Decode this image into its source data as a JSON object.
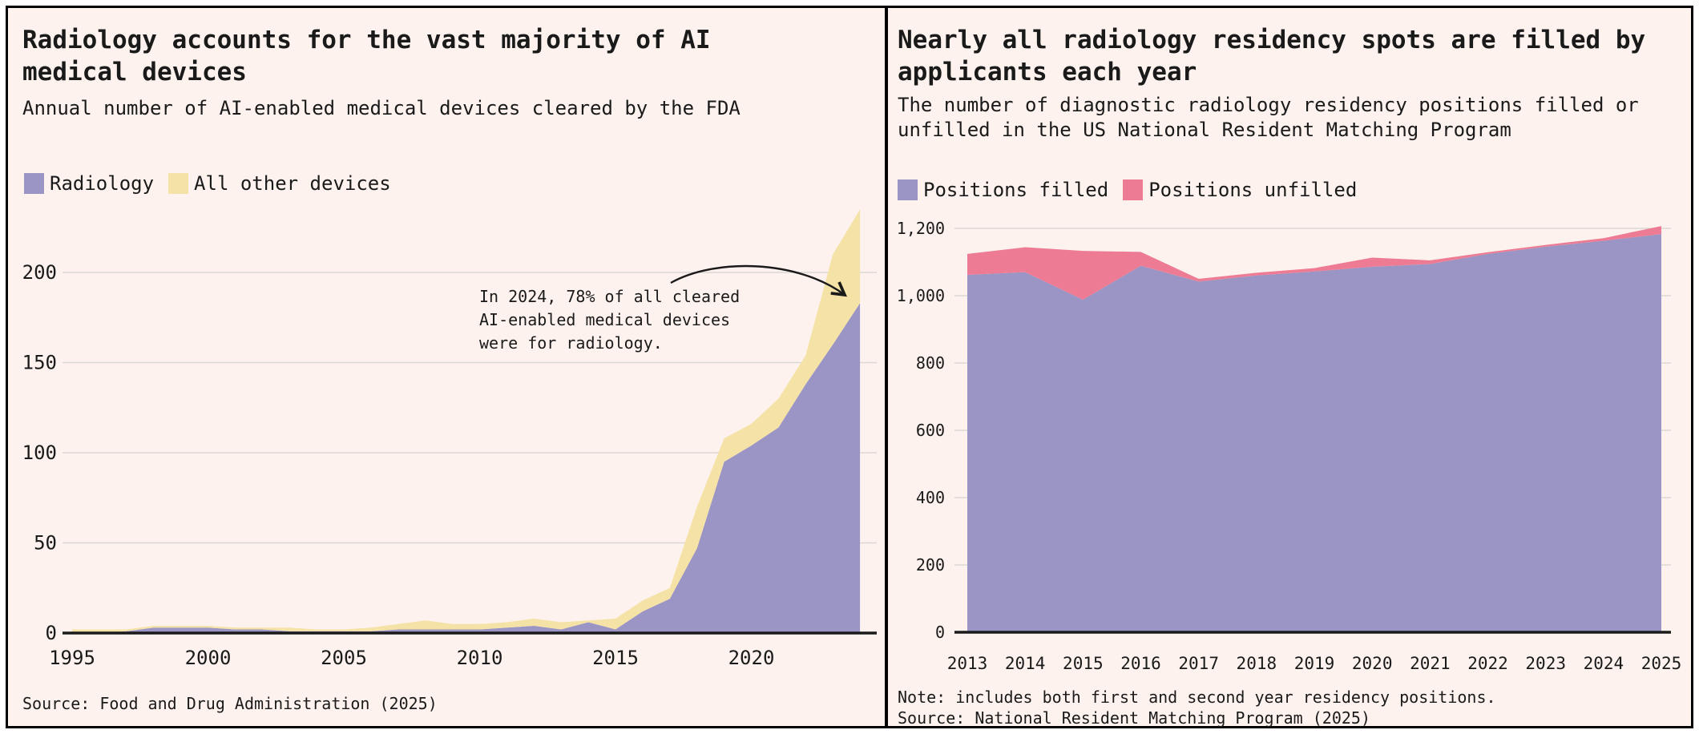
{
  "page": {
    "background": "#fdf2ee",
    "border_color": "#000000",
    "grid_color": "#dcd7d4",
    "axis_color": "#1a1a1a",
    "accent_purple": "#9a95c4",
    "accent_yellow": "#f5e2a6",
    "accent_pink": "#ee7b94"
  },
  "chart_data": [
    {
      "id": "fda-ai-devices",
      "type": "area",
      "stacked": true,
      "grid": true,
      "legend_position": "top-left",
      "title": "Radiology accounts for the vast majority of AI\nmedical devices",
      "subtitle": "Annual number of AI-enabled medical devices cleared by the FDA",
      "x": [
        1995,
        1996,
        1997,
        1998,
        1999,
        2000,
        2001,
        2002,
        2003,
        2004,
        2005,
        2006,
        2007,
        2008,
        2009,
        2010,
        2011,
        2012,
        2013,
        2014,
        2015,
        2016,
        2017,
        2018,
        2019,
        2020,
        2021,
        2022,
        2023,
        2024
      ],
      "series": [
        {
          "name": "Radiology",
          "color": "#9a95c4",
          "values": [
            0,
            0,
            1,
            3,
            3,
            3,
            2,
            2,
            1,
            1,
            1,
            1,
            2,
            2,
            2,
            2,
            3,
            4,
            2,
            6,
            2,
            12,
            19,
            47,
            95,
            104,
            114,
            138,
            160,
            183
          ]
        },
        {
          "name": "All other devices",
          "color": "#f5e2a6",
          "values": [
            2,
            2,
            1,
            1,
            1,
            1,
            1,
            1,
            2,
            1,
            1,
            2,
            3,
            5,
            3,
            3,
            3,
            4,
            4,
            1,
            6,
            6,
            6,
            23,
            13,
            12,
            16,
            16,
            50,
            52
          ]
        }
      ],
      "xticks": {
        "values": [
          1995,
          2000,
          2005,
          2010,
          2015,
          2020
        ],
        "labels": [
          "1995",
          "2000",
          "2005",
          "2010",
          "2015",
          "2020"
        ]
      },
      "yticks": {
        "values": [
          0,
          50,
          100,
          150,
          200
        ],
        "labels": [
          "0",
          "50",
          "100",
          "150",
          "200"
        ]
      },
      "ylim": [
        0,
        240
      ],
      "annotation": "In 2024, 78% of all cleared\nAI-enabled medical devices\nwere for radiology.",
      "source": "Source: Food and Drug Administration (2025)"
    },
    {
      "id": "nrmp-radiology-residency",
      "type": "area",
      "stacked": true,
      "grid": true,
      "legend_position": "top-left",
      "title": "Nearly all radiology residency spots are filled by\napplicants each year",
      "subtitle": "The number of diagnostic radiology residency positions filled or\nunfilled in the US National Resident Matching Program",
      "x": [
        2013,
        2014,
        2015,
        2016,
        2017,
        2018,
        2019,
        2020,
        2021,
        2022,
        2023,
        2024,
        2025
      ],
      "series": [
        {
          "name": "Positions filled",
          "color": "#9a95c4",
          "values": [
            1062,
            1070,
            988,
            1089,
            1042,
            1060,
            1072,
            1086,
            1094,
            1124,
            1146,
            1163,
            1183
          ]
        },
        {
          "name": "Positions unfilled",
          "color": "#ee7b94",
          "values": [
            62,
            74,
            145,
            41,
            8,
            8,
            10,
            27,
            11,
            5,
            5,
            8,
            24
          ]
        }
      ],
      "xticks": {
        "values": [
          2013,
          2014,
          2015,
          2016,
          2017,
          2018,
          2019,
          2020,
          2021,
          2022,
          2023,
          2024,
          2025
        ],
        "labels": [
          "2013",
          "2014",
          "2015",
          "2016",
          "2017",
          "2018",
          "2019",
          "2020",
          "2021",
          "2022",
          "2023",
          "2024",
          "2025"
        ]
      },
      "yticks": {
        "values": [
          0,
          200,
          400,
          600,
          800,
          1000,
          1200
        ],
        "labels": [
          "0",
          "200",
          "400",
          "600",
          "800",
          "1,000",
          "1,200"
        ]
      },
      "ylim": [
        0,
        1250
      ],
      "note": "Note: includes both first and second year residency positions.",
      "source": "Source: National Resident Matching Program (2025)"
    }
  ]
}
